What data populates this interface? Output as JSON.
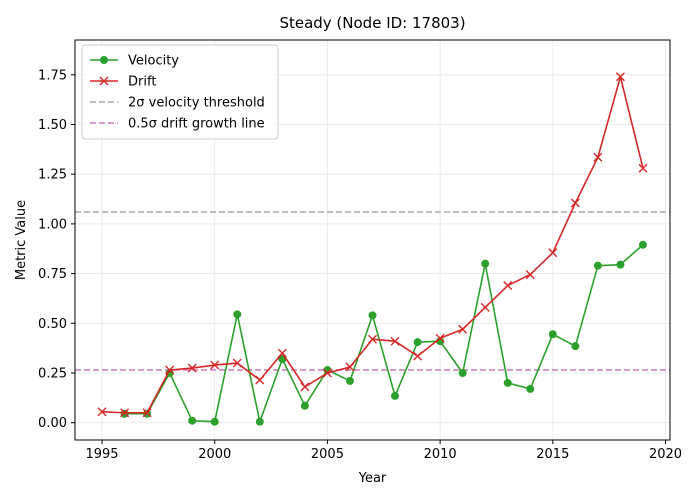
{
  "chart_data": {
    "type": "line",
    "title": "Steady (Node ID: 17803)",
    "xlabel": "Year",
    "ylabel": "Metric Value",
    "xlim": [
      1993.8,
      2020.2
    ],
    "ylim": [
      -0.087,
      1.925
    ],
    "x_ticks": [
      1995,
      2000,
      2005,
      2010,
      2015,
      2020
    ],
    "y_ticks": [
      0.0,
      0.25,
      0.5,
      0.75,
      1.0,
      1.25,
      1.5,
      1.75
    ],
    "y_tick_labels": [
      "0.00",
      "0.25",
      "0.50",
      "0.75",
      "1.00",
      "1.25",
      "1.50",
      "1.75"
    ],
    "grid": true,
    "legend_position": "top-left",
    "series": [
      {
        "name": "Velocity",
        "color": "#2ca02c",
        "marker": "circle",
        "x": [
          1996,
          1997,
          1998,
          1999,
          2000,
          2001,
          2002,
          2003,
          2004,
          2005,
          2006,
          2007,
          2008,
          2009,
          2010,
          2011,
          2012,
          2013,
          2014,
          2015,
          2016,
          2017,
          2018,
          2019
        ],
        "values": [
          0.045,
          0.045,
          0.25,
          0.01,
          0.005,
          0.545,
          0.005,
          0.32,
          0.085,
          0.265,
          0.21,
          0.54,
          0.135,
          0.405,
          0.41,
          0.25,
          0.8,
          0.2,
          0.17,
          0.445,
          0.385,
          0.79,
          0.795,
          0.895
        ]
      },
      {
        "name": "Drift",
        "color": "#d62728",
        "marker": "x",
        "x": [
          1995,
          1996,
          1997,
          1998,
          1999,
          2000,
          2001,
          2002,
          2003,
          2004,
          2005,
          2006,
          2007,
          2008,
          2009,
          2010,
          2011,
          2012,
          2013,
          2014,
          2015,
          2016,
          2017,
          2018,
          2019
        ],
        "values": [
          0.055,
          0.05,
          0.05,
          0.265,
          0.275,
          0.29,
          0.3,
          0.215,
          0.35,
          0.18,
          0.25,
          0.28,
          0.42,
          0.41,
          0.335,
          0.425,
          0.47,
          0.58,
          0.69,
          0.745,
          0.855,
          1.105,
          1.335,
          1.74,
          1.28
        ]
      }
    ],
    "reference_lines": [
      {
        "name": "2σ velocity threshold",
        "y": 1.06,
        "color": "#a9a9a9",
        "style": "dashed"
      },
      {
        "name": "0.5σ drift growth line",
        "y": 0.265,
        "color": "#cc79c0",
        "style": "dashed"
      }
    ]
  }
}
